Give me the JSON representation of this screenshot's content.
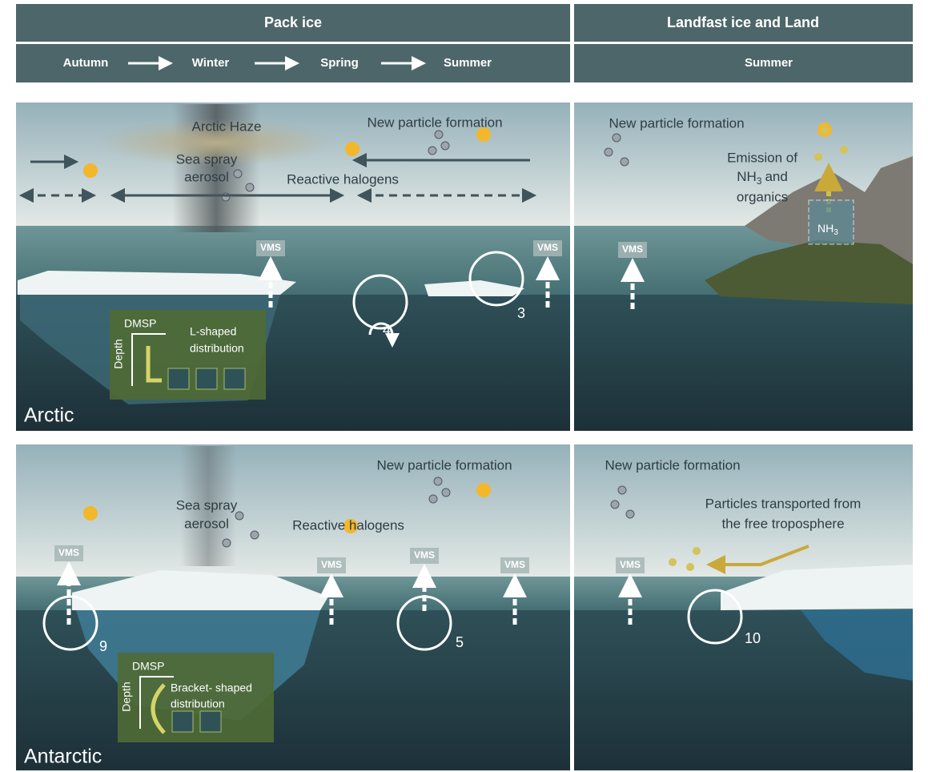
{
  "header": {
    "pack_ice": "Pack ice",
    "landfast": "Landfast ice and Land",
    "seasons": [
      "Autumn",
      "Winter",
      "Spring",
      "Summer"
    ],
    "landfast_season": "Summer"
  },
  "arctic": {
    "label": "Arctic",
    "pack_ice": {
      "haze": "Arctic Haze",
      "sea_spray": [
        "Sea spray",
        "aerosol"
      ],
      "npf": "New particle formation",
      "halogens": "Reactive halogens",
      "vms": [
        "VMS",
        "VMS"
      ],
      "markers": [
        "4",
        "3"
      ],
      "dmsp": {
        "title": "DMSP",
        "depth": "Depth",
        "shape": [
          "L-shaped",
          "distribution"
        ]
      }
    },
    "landfast": {
      "npf": "New particle formation",
      "emission": {
        "line1": "Emission of",
        "chem": "NH",
        "sub": "3",
        "and": "and",
        "line3": "organics"
      },
      "box": {
        "chem": "NH",
        "sub": "3"
      },
      "vms": "VMS"
    }
  },
  "antarctic": {
    "label": "Antarctic",
    "pack_ice": {
      "npf": "New particle formation",
      "sea_spray": [
        "Sea spray",
        "aerosol"
      ],
      "halogens": "Reactive halogens",
      "vms": [
        "VMS",
        "VMS",
        "VMS",
        "VMS"
      ],
      "markers": [
        "9",
        "5"
      ],
      "dmsp": {
        "title": "DMSP",
        "depth": "Depth",
        "shape": [
          "Bracket- shaped",
          "distribution"
        ]
      }
    },
    "landfast": {
      "npf": "New particle formation",
      "transport": [
        "Particles transported from",
        "the free troposphere"
      ],
      "vms": "VMS",
      "marker": "10"
    }
  }
}
